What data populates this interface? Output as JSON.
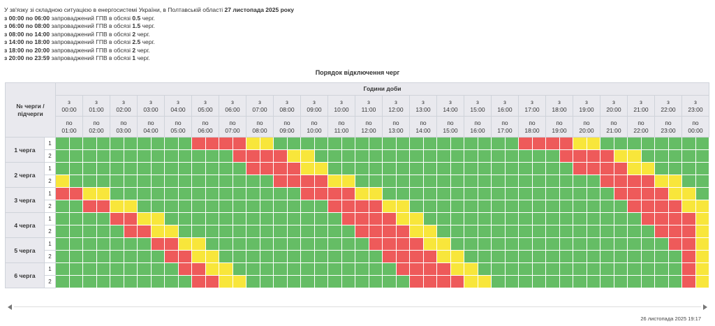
{
  "intro": {
    "line1_prefix": "У зв'язку зі складною ситуацією в енергосистемі України, в Полтавській області ",
    "line1_date": "27 листопада 2025 року",
    "periods": [
      {
        "from": "з 00:00 по 06:00",
        "mid": " запроваджений ГПВ в обсязі ",
        "amount": "0.5",
        "unit": " черг."
      },
      {
        "from": "з 06:00 по 08:00",
        "mid": " запроваджений ГПВ в обсязі ",
        "amount": "1.5",
        "unit": " черг."
      },
      {
        "from": "з 08:00 по 14:00",
        "mid": " запроваджений ГПВ в обсязі ",
        "amount": "2",
        "unit": " черг."
      },
      {
        "from": "з 14:00 по 18:00",
        "mid": " запроваджений ГПВ в обсязі ",
        "amount": "2.5",
        "unit": " черг."
      },
      {
        "from": "з 18:00 по 20:00",
        "mid": " запроваджений ГПВ в обсязі ",
        "amount": "2",
        "unit": " черг."
      },
      {
        "from": "з 20:00 по 23:59",
        "mid": " запроваджений ГПВ в обсязі ",
        "amount": "1",
        "unit": " черг."
      }
    ]
  },
  "table": {
    "caption": "Порядок відключення черг",
    "queue_header": "№ черги / підчерги",
    "hours_header": "Години доби",
    "from_word": "з",
    "to_word": "по",
    "starts": [
      "00:00",
      "01:00",
      "02:00",
      "03:00",
      "04:00",
      "05:00",
      "06:00",
      "07:00",
      "08:00",
      "09:00",
      "10:00",
      "11:00",
      "12:00",
      "13:00",
      "14:00",
      "15:00",
      "16:00",
      "17:00",
      "18:00",
      "19:00",
      "20:00",
      "21:00",
      "22:00",
      "23:00"
    ],
    "ends": [
      "01:00",
      "02:00",
      "03:00",
      "04:00",
      "05:00",
      "06:00",
      "07:00",
      "08:00",
      "09:00",
      "10:00",
      "11:00",
      "12:00",
      "13:00",
      "14:00",
      "15:00",
      "16:00",
      "17:00",
      "18:00",
      "19:00",
      "20:00",
      "21:00",
      "22:00",
      "23:00",
      "00:00"
    ],
    "legend_colors": {
      "on": "#65bd65",
      "off": "#ee5a5a",
      "possible": "#f8e63b"
    },
    "queues": [
      {
        "label": "1 черга",
        "subs": [
          {
            "n": "1",
            "slots": [
              0,
              0,
              0,
              0,
              0,
              0,
              0,
              0,
              0,
              0,
              1,
              1,
              1,
              1,
              2,
              2,
              0,
              0,
              0,
              0,
              0,
              0,
              0,
              0,
              0,
              0,
              0,
              0,
              0,
              0,
              0,
              0,
              0,
              0,
              1,
              1,
              1,
              1,
              2,
              2,
              0,
              0,
              0,
              0,
              0,
              0,
              0,
              0
            ]
          },
          {
            "n": "2",
            "slots": [
              0,
              0,
              0,
              0,
              0,
              0,
              0,
              0,
              0,
              0,
              0,
              0,
              0,
              1,
              1,
              1,
              1,
              2,
              2,
              0,
              0,
              0,
              0,
              0,
              0,
              0,
              0,
              0,
              0,
              0,
              0,
              0,
              0,
              0,
              0,
              0,
              0,
              1,
              1,
              1,
              1,
              2,
              2,
              0,
              0,
              0,
              0,
              0
            ]
          }
        ]
      },
      {
        "label": "2 черга",
        "subs": [
          {
            "n": "1",
            "slots": [
              0,
              0,
              0,
              0,
              0,
              0,
              0,
              0,
              0,
              0,
              0,
              0,
              0,
              0,
              1,
              1,
              1,
              1,
              2,
              2,
              0,
              0,
              0,
              0,
              0,
              0,
              0,
              0,
              0,
              0,
              0,
              0,
              0,
              0,
              0,
              0,
              0,
              0,
              1,
              1,
              1,
              1,
              2,
              2,
              0,
              0,
              0,
              0
            ]
          },
          {
            "n": "2",
            "slots": [
              2,
              0,
              0,
              0,
              0,
              0,
              0,
              0,
              0,
              0,
              0,
              0,
              0,
              0,
              0,
              0,
              1,
              1,
              1,
              1,
              2,
              2,
              0,
              0,
              0,
              0,
              0,
              0,
              0,
              0,
              0,
              0,
              0,
              0,
              0,
              0,
              0,
              0,
              0,
              0,
              1,
              1,
              1,
              1,
              2,
              2,
              0,
              0
            ]
          }
        ]
      },
      {
        "label": "3 черга",
        "subs": [
          {
            "n": "1",
            "slots": [
              1,
              1,
              2,
              2,
              0,
              0,
              0,
              0,
              0,
              0,
              0,
              0,
              0,
              0,
              0,
              0,
              0,
              0,
              1,
              1,
              1,
              1,
              2,
              2,
              0,
              0,
              0,
              0,
              0,
              0,
              0,
              0,
              0,
              0,
              0,
              0,
              0,
              0,
              0,
              0,
              0,
              1,
              1,
              1,
              1,
              2,
              2,
              0
            ]
          },
          {
            "n": "2",
            "slots": [
              0,
              0,
              1,
              1,
              2,
              2,
              0,
              0,
              0,
              0,
              0,
              0,
              0,
              0,
              0,
              0,
              0,
              0,
              0,
              0,
              1,
              1,
              1,
              1,
              2,
              2,
              0,
              0,
              0,
              0,
              0,
              0,
              0,
              0,
              0,
              0,
              0,
              0,
              0,
              0,
              0,
              0,
              1,
              1,
              1,
              1,
              2,
              2
            ]
          }
        ]
      },
      {
        "label": "4 черга",
        "subs": [
          {
            "n": "1",
            "slots": [
              0,
              0,
              0,
              0,
              1,
              1,
              2,
              2,
              0,
              0,
              0,
              0,
              0,
              0,
              0,
              0,
              0,
              0,
              0,
              0,
              0,
              1,
              1,
              1,
              1,
              2,
              2,
              0,
              0,
              0,
              0,
              0,
              0,
              0,
              0,
              0,
              0,
              0,
              0,
              0,
              0,
              0,
              0,
              1,
              1,
              1,
              1,
              2
            ]
          },
          {
            "n": "2",
            "slots": [
              0,
              0,
              0,
              0,
              0,
              1,
              1,
              2,
              2,
              0,
              0,
              0,
              0,
              0,
              0,
              0,
              0,
              0,
              0,
              0,
              0,
              0,
              1,
              1,
              1,
              1,
              2,
              2,
              0,
              0,
              0,
              0,
              0,
              0,
              0,
              0,
              0,
              0,
              0,
              0,
              0,
              0,
              0,
              0,
              1,
              1,
              1,
              2
            ]
          }
        ]
      },
      {
        "label": "5 черга",
        "subs": [
          {
            "n": "1",
            "slots": [
              0,
              0,
              0,
              0,
              0,
              0,
              0,
              1,
              1,
              2,
              2,
              0,
              0,
              0,
              0,
              0,
              0,
              0,
              0,
              0,
              0,
              0,
              0,
              1,
              1,
              1,
              1,
              2,
              2,
              0,
              0,
              0,
              0,
              0,
              0,
              0,
              0,
              0,
              0,
              0,
              0,
              0,
              0,
              0,
              0,
              1,
              1,
              2
            ]
          },
          {
            "n": "2",
            "slots": [
              0,
              0,
              0,
              0,
              0,
              0,
              0,
              0,
              1,
              1,
              2,
              2,
              0,
              0,
              0,
              0,
              0,
              0,
              0,
              0,
              0,
              0,
              0,
              0,
              1,
              1,
              1,
              1,
              2,
              2,
              0,
              0,
              0,
              0,
              0,
              0,
              0,
              0,
              0,
              0,
              0,
              0,
              0,
              0,
              0,
              0,
              1,
              2
            ]
          }
        ]
      },
      {
        "label": "6 черга",
        "subs": [
          {
            "n": "1",
            "slots": [
              0,
              0,
              0,
              0,
              0,
              0,
              0,
              0,
              0,
              1,
              1,
              2,
              2,
              0,
              0,
              0,
              0,
              0,
              0,
              0,
              0,
              0,
              0,
              0,
              0,
              1,
              1,
              1,
              1,
              2,
              2,
              0,
              0,
              0,
              0,
              0,
              0,
              0,
              0,
              0,
              0,
              0,
              0,
              0,
              0,
              0,
              1,
              2
            ]
          },
          {
            "n": "2",
            "slots": [
              0,
              0,
              0,
              0,
              0,
              0,
              0,
              0,
              0,
              0,
              1,
              1,
              2,
              2,
              0,
              0,
              0,
              0,
              0,
              0,
              0,
              0,
              0,
              0,
              0,
              0,
              1,
              1,
              1,
              1,
              2,
              2,
              0,
              0,
              0,
              0,
              0,
              0,
              0,
              0,
              0,
              0,
              0,
              0,
              0,
              0,
              1,
              2
            ]
          }
        ]
      }
    ]
  },
  "footer": {
    "timestamp": "26 листопада 2025 19:17",
    "left_arrow_icon": "chevron-left-icon",
    "right_arrow_icon": "chevron-right-icon"
  }
}
